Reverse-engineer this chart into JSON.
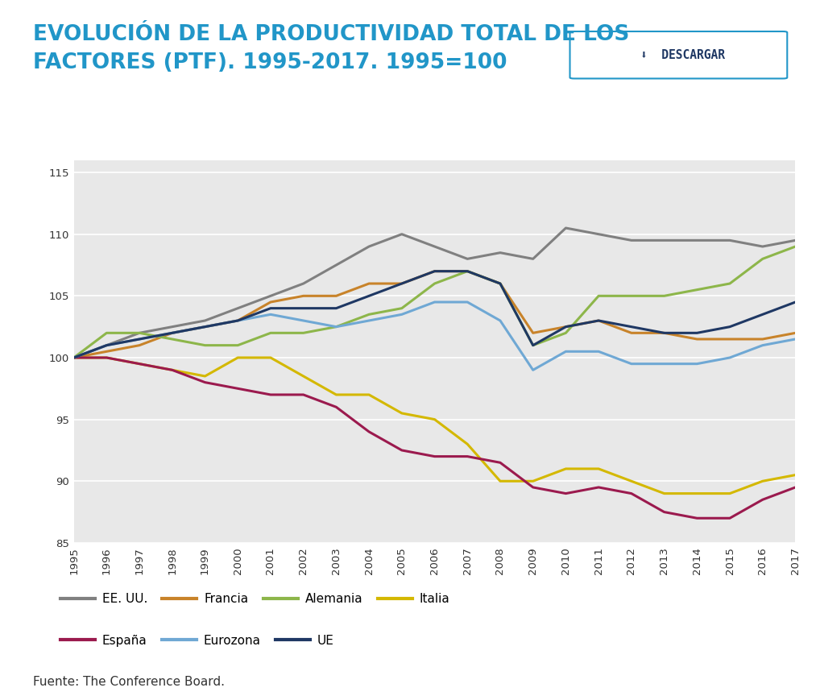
{
  "title_line1": "EVOLUCIÓN DE LA PRODUCTIVIDAD TOTAL DE LOS",
  "title_line2": "FACTORES (PTF). 1995-2017. 1995=100",
  "source": "Fuente: The Conference Board.",
  "years": [
    1995,
    1996,
    1997,
    1998,
    1999,
    2000,
    2001,
    2002,
    2003,
    2004,
    2005,
    2006,
    2007,
    2008,
    2009,
    2010,
    2011,
    2012,
    2013,
    2014,
    2015,
    2016,
    2017
  ],
  "series": {
    "EE. UU.": {
      "color": "#808080",
      "values": [
        100,
        101,
        102,
        102.5,
        103,
        104,
        105,
        106,
        107.5,
        109,
        110,
        109,
        108,
        108.5,
        108,
        110.5,
        110,
        109.5,
        109.5,
        109.5,
        109.5,
        109,
        109.5
      ]
    },
    "Francia": {
      "color": "#c8832a",
      "values": [
        100,
        100.5,
        101,
        102,
        102.5,
        103,
        104.5,
        105,
        105,
        106,
        106,
        107,
        107,
        106,
        102,
        102.5,
        103,
        102,
        102,
        101.5,
        101.5,
        101.5,
        102
      ]
    },
    "Alemania": {
      "color": "#8db64a",
      "values": [
        100,
        102,
        102,
        101.5,
        101,
        101,
        102,
        102,
        102.5,
        103.5,
        104,
        106,
        107,
        106,
        101,
        102,
        105,
        105,
        105,
        105.5,
        106,
        108,
        109
      ]
    },
    "Italia": {
      "color": "#d4b800",
      "values": [
        100,
        100,
        99.5,
        99,
        98.5,
        100,
        100,
        98.5,
        97,
        97,
        95.5,
        95,
        93,
        90,
        90,
        91,
        91,
        90,
        89,
        89,
        89,
        90,
        90.5
      ]
    },
    "España": {
      "color": "#9b1a4e",
      "values": [
        100,
        100,
        99.5,
        99,
        98,
        97.5,
        97,
        97,
        96,
        94,
        92.5,
        92,
        92,
        91.5,
        89.5,
        89,
        89.5,
        89,
        87.5,
        87,
        87,
        88.5,
        89.5
      ]
    },
    "Eurozona": {
      "color": "#6fa8d4",
      "values": [
        100,
        101,
        101.5,
        102,
        102.5,
        103,
        103.5,
        103,
        102.5,
        103,
        103.5,
        104.5,
        104.5,
        103,
        99,
        100.5,
        100.5,
        99.5,
        99.5,
        99.5,
        100,
        101,
        101.5
      ]
    },
    "UE": {
      "color": "#1f3864",
      "values": [
        100,
        101,
        101.5,
        102,
        102.5,
        103,
        104,
        104,
        104,
        105,
        106,
        107,
        107,
        106,
        101,
        102.5,
        103,
        102.5,
        102,
        102,
        102.5,
        103.5,
        104.5
      ]
    }
  },
  "ylim": [
    85,
    116
  ],
  "yticks": [
    85,
    90,
    95,
    100,
    105,
    110,
    115
  ],
  "plot_bg": "#e8e8e8",
  "title_color": "#2196c8",
  "title_fontsize": 19,
  "legend_fontsize": 11,
  "source_fontsize": 11,
  "line_width": 2.2,
  "btn_color": "#1f3864",
  "btn_border": "#2196c8"
}
